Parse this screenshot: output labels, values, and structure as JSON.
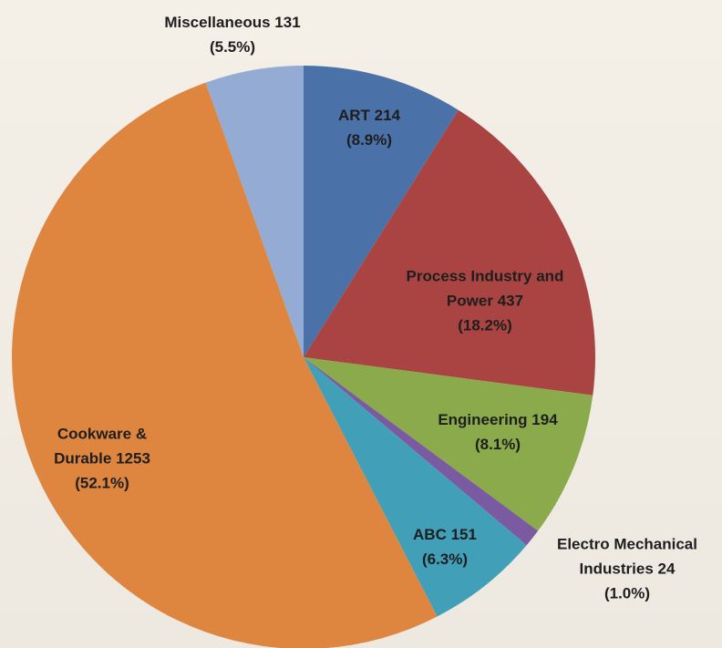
{
  "chart_data": {
    "type": "pie",
    "categories": [
      "ART",
      "Process Industry and Power",
      "Engineering",
      "Electro Mechanical Industries",
      "ABC",
      "Cookware & Durable",
      "Miscellaneous"
    ],
    "values": [
      214,
      437,
      194,
      24,
      151,
      1253,
      131
    ],
    "percent_labels": [
      "(8.9%)",
      "(18.2%)",
      "(8.1%)",
      "(1.0%)",
      "(6.3%)",
      "(52.1%)",
      "(5.5%)"
    ],
    "colors": [
      "#4a72a8",
      "#a94442",
      "#8aaa4b",
      "#7a5aa0",
      "#41a0b8",
      "#de8540",
      "#94abd4"
    ]
  }
}
